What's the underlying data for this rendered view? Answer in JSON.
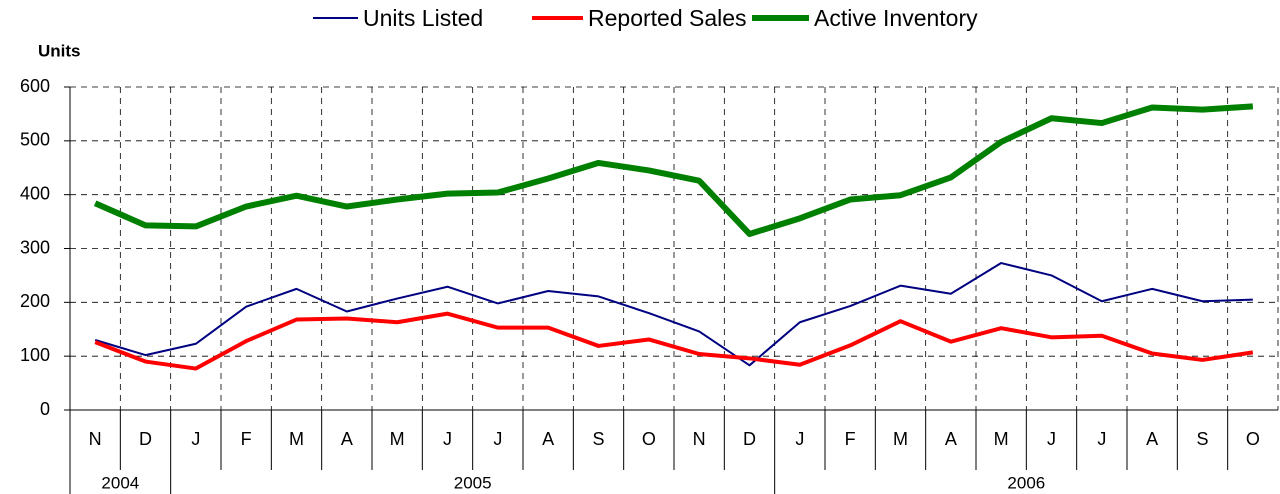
{
  "chart_data": {
    "type": "line",
    "y_label": "Units",
    "categories": [
      "N",
      "D",
      "J",
      "F",
      "M",
      "A",
      "M",
      "J",
      "J",
      "A",
      "S",
      "O",
      "N",
      "D",
      "J",
      "F",
      "M",
      "A",
      "M",
      "J",
      "J",
      "A",
      "S",
      "O"
    ],
    "year_labels": [
      "2004",
      null,
      "2005",
      null,
      null,
      null,
      null,
      null,
      null,
      null,
      null,
      null,
      null,
      null,
      "2006",
      null,
      null,
      null,
      null,
      null,
      null,
      null,
      null,
      null
    ],
    "series": [
      {
        "name": "Units Listed",
        "color": "#000080",
        "line_width": 2,
        "values": [
          130,
          102,
          123,
          192,
          225,
          183,
          207,
          229,
          198,
          221,
          211,
          180,
          146,
          83,
          163,
          193,
          231,
          216,
          273,
          250,
          202,
          225,
          202,
          205
        ]
      },
      {
        "name": "Reported Sales",
        "color": "#ff0000",
        "line_width": 4,
        "values": [
          126,
          90,
          77,
          128,
          168,
          170,
          163,
          179,
          153,
          153,
          119,
          131,
          104,
          96,
          84,
          120,
          165,
          127,
          152,
          135,
          138,
          105,
          93,
          107
        ]
      },
      {
        "name": "Active Inventory",
        "color": "#008000",
        "line_width": 6,
        "values": [
          384,
          343,
          341,
          378,
          398,
          378,
          391,
          402,
          404,
          430,
          459,
          445,
          426,
          327,
          356,
          391,
          399,
          432,
          498,
          542,
          533,
          562,
          558,
          564
        ]
      }
    ],
    "ylim": [
      0,
      600
    ],
    "yticks": [
      0,
      100,
      200,
      300,
      400,
      500,
      600
    ],
    "grid": true,
    "legend": "top"
  }
}
